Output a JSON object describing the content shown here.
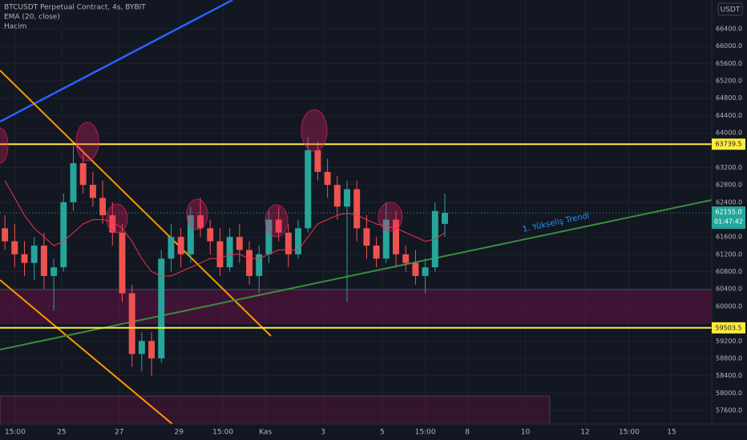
{
  "header": {
    "title": "BTCUSDT Perpetual Contract, 4s, BYBIT",
    "volume": "Hacim",
    "currency": "USDT"
  },
  "chart_data": {
    "type": "candlestick",
    "x": [
      1,
      3,
      5,
      7,
      9,
      11,
      13,
      15,
      17,
      19,
      21,
      23,
      25,
      27,
      29,
      31,
      33,
      35,
      37,
      39,
      41,
      43,
      45,
      47,
      49,
      51,
      53,
      55,
      57,
      59,
      61,
      63,
      65,
      67,
      69,
      71,
      73,
      75,
      77,
      79,
      81,
      83,
      85,
      87,
      89,
      91
    ],
    "open": [
      61800,
      61500,
      61200,
      61000,
      61400,
      60700,
      60900,
      62400,
      63300,
      62800,
      62500,
      62100,
      61700,
      60300,
      58900,
      59200,
      58800,
      61100,
      61600,
      61200,
      62100,
      61800,
      61500,
      60900,
      61600,
      61300,
      60700,
      61200,
      62000,
      61700,
      61200,
      61800,
      63600,
      63100,
      62800,
      62300,
      62700,
      61800,
      61400,
      61100,
      62000,
      61200,
      61000,
      60700,
      60900,
      61900
    ],
    "high": [
      62100,
      61900,
      61500,
      61600,
      61700,
      61100,
      62600,
      63700,
      63600,
      63100,
      62900,
      62400,
      61900,
      60500,
      59400,
      59400,
      61300,
      61900,
      61800,
      62300,
      62500,
      62000,
      61800,
      61800,
      61900,
      61500,
      61400,
      62200,
      62300,
      61900,
      62000,
      63900,
      63800,
      63400,
      63000,
      62900,
      62900,
      62100,
      61600,
      62400,
      62200,
      61400,
      61300,
      61100,
      62400,
      62600
    ],
    "low": [
      61300,
      60900,
      60700,
      60600,
      60400,
      59900,
      60800,
      62200,
      62600,
      62300,
      61900,
      61400,
      60100,
      58600,
      58500,
      58400,
      58700,
      60800,
      60900,
      61000,
      61600,
      61200,
      60700,
      60800,
      61000,
      60500,
      60300,
      61000,
      61500,
      60900,
      61100,
      61700,
      62900,
      62500,
      62000,
      60100,
      61500,
      61100,
      60900,
      61000,
      60900,
      60800,
      60500,
      60300,
      60800,
      61600
    ],
    "close": [
      61500,
      61200,
      61000,
      61400,
      60700,
      60900,
      62400,
      63300,
      62800,
      62500,
      62100,
      61700,
      60300,
      58900,
      59200,
      58800,
      61100,
      61600,
      61200,
      62100,
      61800,
      61500,
      60900,
      61600,
      61300,
      60700,
      61200,
      62000,
      61700,
      61200,
      61800,
      63600,
      63100,
      62800,
      62300,
      62700,
      61800,
      61400,
      61100,
      62000,
      61200,
      61000,
      60700,
      60900,
      62200,
      62155
    ],
    "series": [
      {
        "name": "EMA (20, close)",
        "color": "#f23645",
        "values": [
          62900,
          62500,
          62100,
          61800,
          61600,
          61400,
          61500,
          61700,
          61900,
          62000,
          62000,
          61950,
          61800,
          61500,
          61100,
          60800,
          60700,
          60700,
          60800,
          60900,
          61000,
          61100,
          61100,
          61200,
          61200,
          61100,
          61100,
          61200,
          61300,
          61300,
          61300,
          61600,
          61900,
          62000,
          62100,
          62150,
          62100,
          62000,
          61900,
          61850,
          61800,
          61700,
          61600,
          61500,
          61550,
          61700
        ]
      }
    ],
    "up_color": "#26a69a",
    "down_color": "#ef5350",
    "xlim": [
      0,
      145.6
    ],
    "xticks": [
      {
        "value": 3.1,
        "label": "15:00"
      },
      {
        "value": 12.6,
        "label": "25"
      },
      {
        "value": 24.4,
        "label": "27"
      },
      {
        "value": 36.6,
        "label": "29"
      },
      {
        "value": 45.6,
        "label": "15:00"
      },
      {
        "value": 54.3,
        "label": "Kas"
      },
      {
        "value": 66.1,
        "label": "3"
      },
      {
        "value": 78.2,
        "label": "5"
      },
      {
        "value": 87,
        "label": "15:00"
      },
      {
        "value": 95.6,
        "label": "8"
      },
      {
        "value": 107.5,
        "label": "10"
      },
      {
        "value": 119.7,
        "label": "12"
      },
      {
        "value": 128.7,
        "label": "15:00"
      },
      {
        "value": 137.4,
        "label": "15"
      }
    ],
    "ylim": [
      57286,
      67064
    ],
    "yticks": [
      {
        "value": 66400,
        "label": "66400.0"
      },
      {
        "value": 66000,
        "label": "66000.0"
      },
      {
        "value": 65600,
        "label": "65600.0"
      },
      {
        "value": 65200,
        "label": "65200.0"
      },
      {
        "value": 64800,
        "label": "64800.0"
      },
      {
        "value": 64400,
        "label": "64400.0"
      },
      {
        "value": 64000,
        "label": "64000.0"
      },
      {
        "value": 63200,
        "label": "63200.0"
      },
      {
        "value": 62800,
        "label": "62800.0"
      },
      {
        "value": 62400,
        "label": "62400.0"
      },
      {
        "value": 61600,
        "label": "61600.0"
      },
      {
        "value": 61200,
        "label": "61200.0"
      },
      {
        "value": 60800,
        "label": "60800.0"
      },
      {
        "value": 60400,
        "label": "60400.0"
      },
      {
        "value": 60000,
        "label": "60000.0"
      },
      {
        "value": 59200,
        "label": "59200.0"
      },
      {
        "value": 58800,
        "label": "58800.0"
      },
      {
        "value": 58400,
        "label": "58400.0"
      },
      {
        "value": 58000,
        "label": "58000.0"
      },
      {
        "value": 57600,
        "label": "57600.0"
      }
    ],
    "grid": true,
    "levels": [
      {
        "value": 63739.5,
        "color": "#ffeb3b"
      },
      {
        "value": 59503.5,
        "color": "#ffeb3b"
      }
    ],
    "last": {
      "value": 62155,
      "label": "62155.0",
      "countdown": "01:47:42"
    },
    "annotation": "1. Yükseliş Trendi"
  }
}
